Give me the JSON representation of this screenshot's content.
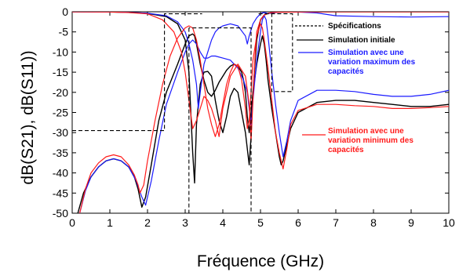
{
  "chart_data": {
    "type": "line",
    "xlabel": "Fréquence (GHz)",
    "ylabel": "dB(S21), dB(S11))",
    "xlim": [
      0,
      10
    ],
    "ylim": [
      -50,
      0
    ],
    "xticks": [
      0,
      1,
      2,
      3,
      4,
      5,
      6,
      7,
      8,
      9,
      10
    ],
    "yticks": [
      0,
      -5,
      -10,
      -15,
      -20,
      -25,
      -30,
      -35,
      -40,
      -45,
      -50
    ],
    "grid": false,
    "legend_position": "top-right",
    "colors": {
      "spec": "#000000",
      "initial": "#000000",
      "max": "#1a1aff",
      "min": "#ff1a1a"
    },
    "legend": [
      {
        "series": "spec",
        "lines": [
          "Spécifications"
        ]
      },
      {
        "series": "initial",
        "lines": [
          "Simulation initiale"
        ]
      },
      {
        "series": "max",
        "lines": [
          "Simulation avec une",
          "variation maximum des",
          "capacités"
        ]
      },
      {
        "series": "min",
        "lines": [
          "Simulation avec une",
          "variation minimum des",
          "capacités"
        ]
      }
    ],
    "spec_polylines": [
      {
        "x": [
          0,
          2.45,
          2.45,
          3.45
        ],
        "y": [
          -29.5,
          -29.5,
          -0.5,
          -0.5
        ]
      },
      {
        "x": [
          3.1,
          3.1,
          4.75,
          4.75,
          3.1
        ],
        "y": [
          -4,
          -51,
          -51,
          -4,
          -4
        ]
      },
      {
        "x": [
          4.95,
          5.3,
          5.3,
          5.85,
          5.85,
          4.95
        ],
        "y": [
          -0.5,
          -0.5,
          -19.8,
          -19.8,
          -0.5,
          -0.5
        ]
      }
    ],
    "series": [
      {
        "key": "initial",
        "s21": {
          "x": [
            0.15,
            0.3,
            0.5,
            0.7,
            0.9,
            1.1,
            1.3,
            1.5,
            1.65,
            1.75,
            1.85,
            1.95,
            2.1,
            2.3,
            2.5,
            2.8,
            3.0,
            3.1,
            3.2,
            3.25,
            3.3,
            3.4,
            3.5,
            3.6,
            3.7,
            3.8,
            3.9,
            4.0,
            4.1,
            4.2,
            4.3,
            4.4,
            4.5,
            4.55,
            4.6,
            4.65,
            4.7,
            4.75,
            4.8,
            4.9,
            5.0,
            5.05,
            5.1,
            5.15,
            5.2,
            5.3,
            5.4,
            5.5,
            5.55,
            5.6,
            5.7,
            5.8,
            6.0,
            6.5,
            7.0,
            7.5,
            8.0,
            8.5,
            9.0,
            9.5,
            10.0
          ],
          "y": [
            -50,
            -45,
            -41,
            -38.5,
            -37,
            -36.5,
            -37,
            -38.5,
            -41,
            -44,
            -48.5,
            -46,
            -38,
            -27,
            -20,
            -13,
            -8,
            -6,
            -5.5,
            -6,
            -8,
            -13,
            -17,
            -20,
            -21,
            -19.5,
            -17.5,
            -16,
            -14.5,
            -13.5,
            -13,
            -13.5,
            -15,
            -17,
            -20,
            -26,
            -30,
            -25,
            -20,
            -13,
            -8,
            -6,
            -8,
            -12,
            -17,
            -24,
            -30,
            -36,
            -38,
            -37,
            -33,
            -29,
            -25,
            -22.5,
            -22,
            -22,
            -22.5,
            -23,
            -23.5,
            -23.5,
            -23
          ]
        },
        "s11": {
          "x": [
            0,
            1.0,
            1.5,
            2.0,
            2.5,
            2.8,
            3.0,
            3.1,
            3.2,
            3.25,
            3.3,
            3.4,
            3.5,
            3.6,
            3.7,
            3.8,
            3.9,
            4.0,
            4.1,
            4.2,
            4.3,
            4.4,
            4.5,
            4.6,
            4.7,
            4.75,
            4.8,
            4.9,
            5.0,
            5.1,
            5.2,
            5.3,
            5.4,
            5.5,
            6.0,
            7.0,
            8.0,
            9.0,
            10.0
          ],
          "y": [
            0,
            -0.05,
            -0.15,
            -0.4,
            -1.2,
            -3,
            -7,
            -15,
            -35,
            -42.5,
            -28,
            -18,
            -15,
            -14.8,
            -16,
            -22,
            -27,
            -30,
            -26,
            -21,
            -19,
            -20,
            -25,
            -30,
            -38,
            -31,
            -20,
            -7,
            -2,
            -0.8,
            -0.4,
            -0.25,
            -0.15,
            -0.1,
            -0.05,
            0,
            0,
            0,
            0
          ]
        }
      },
      {
        "key": "max",
        "s21": {
          "x": [
            0.2,
            0.35,
            0.5,
            0.7,
            0.9,
            1.1,
            1.3,
            1.5,
            1.7,
            1.85,
            1.95,
            2.1,
            2.3,
            2.5,
            2.8,
            3.0,
            3.1,
            3.2,
            3.3,
            3.4,
            3.5,
            3.6,
            3.7,
            3.8,
            4.0,
            4.2,
            4.4,
            4.55,
            4.65,
            4.7,
            4.75,
            4.8,
            4.9,
            5.0,
            5.05,
            5.1,
            5.15,
            5.2,
            5.3,
            5.4,
            5.5,
            5.6,
            5.7,
            5.8,
            6.0,
            6.5,
            7.0,
            7.5,
            8.0,
            8.5,
            9.0,
            9.5,
            10.0
          ],
          "y": [
            -50,
            -44.5,
            -41,
            -38.5,
            -37,
            -36.5,
            -37,
            -38.5,
            -42,
            -46,
            -48,
            -42,
            -32,
            -23,
            -15,
            -10,
            -8,
            -7,
            -8,
            -10,
            -11.5,
            -11.5,
            -11,
            -11,
            -11.5,
            -12,
            -14,
            -17,
            -20,
            -24,
            -28,
            -22,
            -12,
            -5,
            -2,
            -1,
            -2,
            -6,
            -15,
            -23,
            -30,
            -36,
            -32,
            -27,
            -22,
            -19.5,
            -19.5,
            -19.8,
            -20.5,
            -21,
            -21,
            -20.5,
            -19.5
          ]
        },
        "s11": {
          "x": [
            0,
            1.0,
            1.5,
            2.0,
            2.5,
            2.8,
            3.0,
            3.1,
            3.2,
            3.3,
            3.35,
            3.4,
            3.5,
            3.6,
            3.7,
            3.8,
            3.9,
            4.0,
            4.2,
            4.4,
            4.6,
            4.65,
            4.7,
            4.8,
            4.9,
            5.0,
            5.05,
            5.1,
            5.15,
            5.2,
            5.3,
            5.5,
            6.0,
            6.5,
            7.0,
            8.0,
            9.0,
            10.0
          ],
          "y": [
            0,
            -0.05,
            -0.15,
            -0.35,
            -1,
            -2.5,
            -5,
            -8,
            -12,
            -18,
            -24,
            -20,
            -13,
            -10,
            -7,
            -5,
            -4,
            -3.5,
            -3,
            -3.5,
            -6,
            -8,
            -6,
            -3,
            -1.5,
            -0.5,
            -0.3,
            -0.2,
            -0.3,
            -0.5,
            -0.3,
            -0.1,
            -0.05,
            -0.3,
            -1.0,
            -1.2,
            -1.3,
            -1.2
          ]
        }
      },
      {
        "key": "min",
        "s21": {
          "x": [
            0.2,
            0.35,
            0.5,
            0.7,
            0.9,
            1.1,
            1.3,
            1.5,
            1.65,
            1.75,
            1.8,
            1.9,
            2.0,
            2.2,
            2.4,
            2.6,
            2.8,
            3.0,
            3.1,
            3.2,
            3.3,
            3.4,
            3.5,
            3.6,
            3.7,
            3.8,
            3.9,
            4.0,
            4.1,
            4.2,
            4.3,
            4.4,
            4.5,
            4.6,
            4.65,
            4.7,
            4.75,
            4.8,
            4.9,
            5.0,
            5.05,
            5.1,
            5.2,
            5.3,
            5.4,
            5.5,
            5.6,
            5.7,
            5.8,
            6.0,
            6.5,
            7.0,
            7.5,
            8.0,
            8.5,
            9.0,
            9.5,
            10.0
          ],
          "y": [
            -50,
            -44,
            -40,
            -37.5,
            -36,
            -35.5,
            -36,
            -38,
            -40.5,
            -43,
            -45,
            -43,
            -37,
            -27,
            -18,
            -11,
            -6.5,
            -4,
            -3.5,
            -4,
            -7,
            -12,
            -18,
            -24,
            -28,
            -31,
            -28,
            -23,
            -18,
            -15,
            -13,
            -13.5,
            -17,
            -24,
            -29,
            -27,
            -20,
            -12,
            -6,
            -3,
            -4,
            -7,
            -14,
            -22,
            -30,
            -35,
            -39,
            -34,
            -28,
            -24.5,
            -23,
            -23,
            -23.3,
            -23.5,
            -24,
            -24,
            -23.8,
            -23.5
          ]
        },
        "s11": {
          "x": [
            0,
            1.0,
            1.5,
            2.0,
            2.4,
            2.7,
            2.9,
            3.0,
            3.1,
            3.2,
            3.3,
            3.4,
            3.5,
            3.6,
            3.7,
            3.8,
            3.9,
            4.0,
            4.2,
            4.4,
            4.6,
            4.7,
            4.75,
            4.8,
            4.85,
            4.9,
            5.0,
            5.1,
            5.2,
            5.3,
            5.5,
            6.0,
            7.0,
            8.0,
            9.0,
            10.0
          ],
          "y": [
            0,
            -0.05,
            -0.2,
            -0.5,
            -2,
            -5,
            -10,
            -15,
            -22,
            -29,
            -27,
            -24,
            -21,
            -22,
            -24,
            -27,
            -31,
            -24,
            -16,
            -13,
            -16,
            -23,
            -32,
            -22,
            -12,
            -5,
            -2,
            -0.8,
            -0.4,
            -0.2,
            -0.1,
            -0.05,
            0,
            0,
            0,
            0
          ]
        }
      }
    ]
  }
}
